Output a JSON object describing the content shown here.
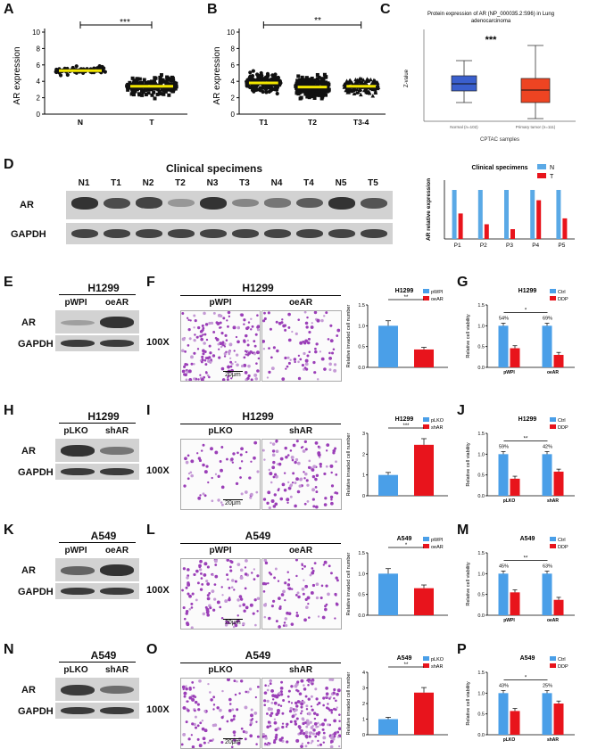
{
  "labels": {
    "A": "A",
    "B": "B",
    "C": "C",
    "D": "D",
    "E": "E",
    "F": "F",
    "G": "G",
    "H": "H",
    "I": "I",
    "J": "J",
    "K": "K",
    "L": "L",
    "M": "M",
    "N": "N",
    "O": "O",
    "P": "P"
  },
  "panelA": {
    "ylabel": "AR expression",
    "yticks": [
      0,
      2,
      4,
      6,
      8,
      10
    ],
    "categories": [
      "N",
      "T"
    ],
    "means": [
      5.3,
      3.4
    ],
    "significance": "***"
  },
  "panelB": {
    "ylabel": "AR expression",
    "yticks": [
      0,
      2,
      4,
      6,
      8,
      10
    ],
    "categories": [
      "T1",
      "T2",
      "T3-4"
    ],
    "means": [
      3.8,
      3.3,
      3.4
    ],
    "significance": "**"
  },
  "panelC": {
    "title_line1": "Protein expression of AR (NP_000035.2:S96) in Lung",
    "title_line2": "adenocarcinoma",
    "ylabel": "Z-value",
    "xlabel": "CPTAC samples",
    "categories": [
      "Normal (n=102)",
      "Primary tumor (n=111)"
    ],
    "significance": "***",
    "colors": {
      "normal": "#3a5fcd",
      "tumor": "#ee4422"
    }
  },
  "panelD": {
    "title": "Clinical specimens",
    "lanes": [
      "N1",
      "T1",
      "N2",
      "T2",
      "N3",
      "T3",
      "N4",
      "T4",
      "N5",
      "T5"
    ],
    "rows": [
      "AR",
      "GAPDH"
    ],
    "chart_title": "Clinical specimens",
    "ylabel": "AR relative expression",
    "legend": [
      "N",
      "T"
    ]
  },
  "blots": {
    "E": {
      "title": "H1299",
      "lanes": [
        "pWPI",
        "oeAR"
      ],
      "rows": [
        "AR",
        "GAPDH"
      ]
    },
    "H": {
      "title": "H1299",
      "lanes": [
        "pLKO",
        "shAR"
      ],
      "rows": [
        "AR",
        "GAPDH"
      ]
    },
    "K": {
      "title": "A549",
      "lanes": [
        "pWPI",
        "oeAR"
      ],
      "rows": [
        "AR",
        "GAPDH"
      ]
    },
    "N": {
      "title": "A549",
      "lanes": [
        "pLKO",
        "shAR"
      ],
      "rows": [
        "AR",
        "GAPDH"
      ]
    }
  },
  "invasion": {
    "F": {
      "title": "H1299",
      "cols": [
        "pWPI",
        "oeAR"
      ],
      "mag": "100X",
      "scale": "20μm"
    },
    "I": {
      "title": "H1299",
      "cols": [
        "pLKO",
        "shAR"
      ],
      "mag": "100X",
      "scale": "20μm"
    },
    "L": {
      "title": "A549",
      "cols": [
        "pWPI",
        "oeAR"
      ],
      "mag": "100X",
      "scale": "20μm"
    },
    "O": {
      "title": "A549",
      "cols": [
        "pLKO",
        "shAR"
      ],
      "mag": "100X",
      "scale": "20μm"
    }
  },
  "chart_data": [
    {
      "type": "bar",
      "panel": "D",
      "title": "Clinical specimens",
      "categories": [
        "P1",
        "P2",
        "P3",
        "P4",
        "P5"
      ],
      "series": [
        {
          "name": "N",
          "values": [
            1.0,
            1.0,
            1.0,
            1.0,
            1.0
          ],
          "color": "#5aa9e6"
        },
        {
          "name": "T",
          "values": [
            0.52,
            0.3,
            0.2,
            0.79,
            0.42
          ],
          "color": "#e8141c"
        }
      ],
      "ylabel": "AR relative expression",
      "ylim": [
        0,
        1.2
      ],
      "legend": "top-right"
    },
    {
      "type": "bar",
      "panel": "F",
      "title": "H1299",
      "categories": [
        ""
      ],
      "series": [
        {
          "name": "pWPI",
          "values": [
            1.0
          ],
          "color": "#4a9fe8"
        },
        {
          "name": "oeAR",
          "values": [
            0.43
          ],
          "color": "#e8141c"
        }
      ],
      "ylabel": "Relative invaded cell number",
      "ylim": [
        0,
        1.5
      ],
      "yticks": [
        "0.0",
        "0.5",
        "1.0",
        "1.5"
      ],
      "significance": "**",
      "legend": "top-right"
    },
    {
      "type": "bar",
      "panel": "G",
      "title": "H1299",
      "categories": [
        "pWPI",
        "oeAR"
      ],
      "series": [
        {
          "name": "Ctrl",
          "values": [
            1.0,
            1.0
          ],
          "color": "#4a9fe8"
        },
        {
          "name": "DDP",
          "values": [
            0.46,
            0.3
          ],
          "color": "#e8141c"
        }
      ],
      "annotations": [
        "54%",
        "69%"
      ],
      "significance": "*",
      "ylabel": "Relative cell viability",
      "ylim": [
        0,
        1.5
      ],
      "yticks": [
        "0.0",
        "0.5",
        "1.0",
        "1.5"
      ],
      "legend": "top-right"
    },
    {
      "type": "bar",
      "panel": "I",
      "title": "H1299",
      "categories": [
        ""
      ],
      "series": [
        {
          "name": "pLKO",
          "values": [
            1.0
          ],
          "color": "#4a9fe8"
        },
        {
          "name": "shAR",
          "values": [
            2.45
          ],
          "color": "#e8141c"
        }
      ],
      "ylabel": "Relative invaded cell number",
      "ylim": [
        0,
        3
      ],
      "yticks": [
        "0",
        "1",
        "2",
        "3"
      ],
      "significance": "***",
      "legend": "top-right"
    },
    {
      "type": "bar",
      "panel": "J",
      "title": "H1299",
      "categories": [
        "pLKO",
        "shAR"
      ],
      "series": [
        {
          "name": "Ctrl",
          "values": [
            1.0,
            1.0
          ],
          "color": "#4a9fe8"
        },
        {
          "name": "DDP",
          "values": [
            0.41,
            0.58
          ],
          "color": "#e8141c"
        }
      ],
      "annotations": [
        "59%",
        "42%"
      ],
      "significance": "**",
      "ylabel": "Relative cell viability",
      "ylim": [
        0,
        1.5
      ],
      "yticks": [
        "0.0",
        "0.5",
        "1.0",
        "1.5"
      ],
      "legend": "top-right"
    },
    {
      "type": "bar",
      "panel": "L",
      "title": "A549",
      "categories": [
        ""
      ],
      "series": [
        {
          "name": "pWPI",
          "values": [
            1.0
          ],
          "color": "#4a9fe8"
        },
        {
          "name": "oeAR",
          "values": [
            0.65
          ],
          "color": "#e8141c"
        }
      ],
      "ylabel": "Relative invaded cell number",
      "ylim": [
        0,
        1.5
      ],
      "yticks": [
        "0.0",
        "0.5",
        "1.0",
        "1.5"
      ],
      "significance": "*",
      "legend": "top-right"
    },
    {
      "type": "bar",
      "panel": "M",
      "title": "A549",
      "categories": [
        "pWPI",
        "oeAR"
      ],
      "series": [
        {
          "name": "Ctrl",
          "values": [
            1.0,
            1.0
          ],
          "color": "#4a9fe8"
        },
        {
          "name": "DDP",
          "values": [
            0.55,
            0.37
          ],
          "color": "#e8141c"
        }
      ],
      "annotations": [
        "45%",
        "63%"
      ],
      "significance": "**",
      "ylabel": "Relative cell viability",
      "ylim": [
        0,
        1.5
      ],
      "yticks": [
        "0.0",
        "0.5",
        "1.0",
        "1.5"
      ],
      "legend": "top-right"
    },
    {
      "type": "bar",
      "panel": "O",
      "title": "A549",
      "categories": [
        ""
      ],
      "series": [
        {
          "name": "pLKO",
          "values": [
            1.0
          ],
          "color": "#4a9fe8"
        },
        {
          "name": "shAR",
          "values": [
            2.7
          ],
          "color": "#e8141c"
        }
      ],
      "ylabel": "Relative invaded cell number",
      "ylim": [
        0,
        4
      ],
      "yticks": [
        "0",
        "1",
        "2",
        "3",
        "4"
      ],
      "significance": "**",
      "legend": "top-right"
    },
    {
      "type": "bar",
      "panel": "P",
      "title": "A549",
      "categories": [
        "pLKO",
        "shAR"
      ],
      "series": [
        {
          "name": "Ctrl",
          "values": [
            1.0,
            1.0
          ],
          "color": "#4a9fe8"
        },
        {
          "name": "DDP",
          "values": [
            0.57,
            0.75
          ],
          "color": "#e8141c"
        }
      ],
      "annotations": [
        "43%",
        "25%"
      ],
      "significance": "*",
      "ylabel": "Relative cell viability",
      "ylim": [
        0,
        1.5
      ],
      "yticks": [
        "0.0",
        "0.5",
        "1.0",
        "1.5"
      ],
      "legend": "top-right"
    }
  ]
}
